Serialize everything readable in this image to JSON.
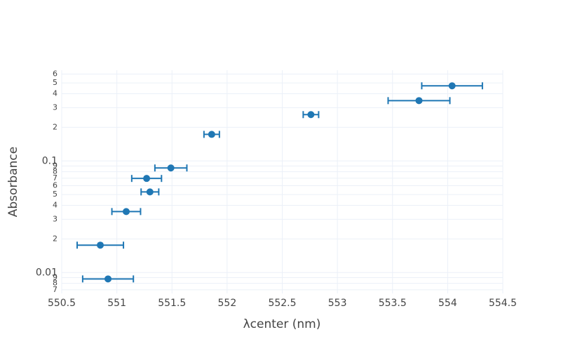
{
  "chart_data": {
    "type": "scatter",
    "x_label": "λcenter (nm)",
    "y_label": "Absorbance",
    "x": [
      550.92,
      550.85,
      551.085,
      551.3,
      551.27,
      551.49,
      551.86,
      552.76,
      553.74,
      554.04
    ],
    "values": [
      0.00877,
      0.0176,
      0.0352,
      0.0528,
      0.0697,
      0.0865,
      0.173,
      0.26,
      0.347,
      0.471
    ],
    "error_x": [
      0.23,
      0.21,
      0.13,
      0.08,
      0.135,
      0.145,
      0.07,
      0.07,
      0.28,
      0.275
    ],
    "color": "#1f77b4",
    "log_y": true,
    "grid": true,
    "xlim": [
      550.5,
      554.5
    ],
    "xticks": [
      550.5,
      551,
      551.5,
      552,
      552.5,
      553,
      553.5,
      554,
      554.5
    ],
    "ylim": [
      0.0065,
      0.65
    ],
    "yticks": [
      {
        "value": 0.007,
        "label": "7"
      },
      {
        "value": 0.008,
        "label": "8"
      },
      {
        "value": 0.009,
        "label": "9"
      },
      0.01,
      {
        "value": 0.02,
        "label": "2"
      },
      {
        "value": 0.03,
        "label": "3"
      },
      {
        "value": 0.04,
        "label": "4"
      },
      {
        "value": 0.05,
        "label": "5"
      },
      {
        "value": 0.06,
        "label": "6"
      },
      {
        "value": 0.07,
        "label": "7"
      },
      {
        "value": 0.08,
        "label": "8"
      },
      {
        "value": 0.09,
        "label": "9"
      },
      0.1,
      {
        "value": 0.2,
        "label": "2"
      },
      {
        "value": 0.3,
        "label": "3"
      },
      {
        "value": 0.4,
        "label": "4"
      },
      {
        "value": 0.5,
        "label": "5"
      },
      {
        "value": 0.6,
        "label": "6"
      }
    ]
  }
}
